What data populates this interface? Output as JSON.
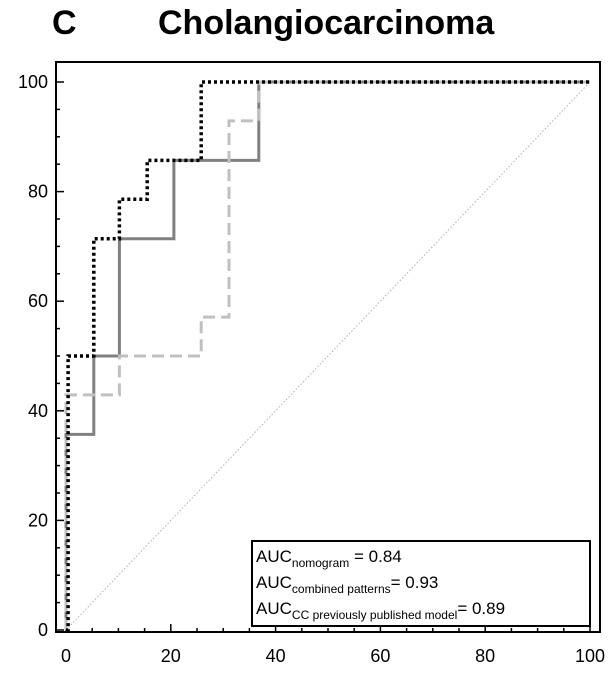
{
  "header": {
    "panel_letter": "C",
    "title": "Cholangiocarcinoma"
  },
  "chart_data": {
    "type": "line",
    "title": "Cholangiocarcinoma",
    "xlabel": "",
    "ylabel": "",
    "xlim": [
      0,
      100
    ],
    "ylim": [
      0,
      100
    ],
    "x_ticks": [
      0,
      20,
      40,
      60,
      80,
      100
    ],
    "y_ticks": [
      0,
      20,
      40,
      60,
      80,
      100
    ],
    "grid": false,
    "legend_position": "bottom-right",
    "legend": [
      {
        "main": "AUC",
        "sub": "nomogram",
        "tail": " = 0.84"
      },
      {
        "main": "AUC",
        "sub": "combined patterns",
        "tail": "= 0.93"
      },
      {
        "main": "AUC",
        "sub": "CC previously published model",
        "tail": "= 0.89"
      }
    ],
    "series": [
      {
        "style": "solid",
        "color": "#808080",
        "x": [
          0,
          0,
          0,
          5.3,
          5.3,
          10.2,
          10.2,
          20.6,
          20.6,
          36.8,
          36.8,
          100
        ],
        "y": [
          0,
          0,
          35.7,
          35.7,
          50,
          50,
          71.4,
          71.4,
          85.7,
          85.7,
          100,
          100
        ]
      },
      {
        "style": "dashed",
        "color": "#c0c0c0",
        "x": [
          0,
          0,
          0,
          1,
          1,
          10.2,
          10.2,
          25.8,
          25.8,
          31.1,
          31.1,
          36.8,
          36.8,
          100
        ],
        "y": [
          0,
          0,
          42.9,
          42.9,
          42.9,
          42.9,
          50,
          50,
          57.1,
          57.1,
          92.9,
          92.9,
          100,
          100
        ]
      },
      {
        "style": "dotted",
        "color": "#000000",
        "x": [
          0,
          0.4,
          0.4,
          5.3,
          5.3,
          10.2,
          10.2,
          15.5,
          15.5,
          25.8,
          25.8,
          100
        ],
        "y": [
          0,
          0,
          50,
          50,
          71.4,
          71.4,
          78.6,
          78.6,
          85.7,
          85.7,
          100,
          100
        ]
      },
      {
        "style": "reference",
        "color": "#b0b0b0",
        "x": [
          0,
          100
        ],
        "y": [
          0,
          100
        ]
      }
    ]
  }
}
